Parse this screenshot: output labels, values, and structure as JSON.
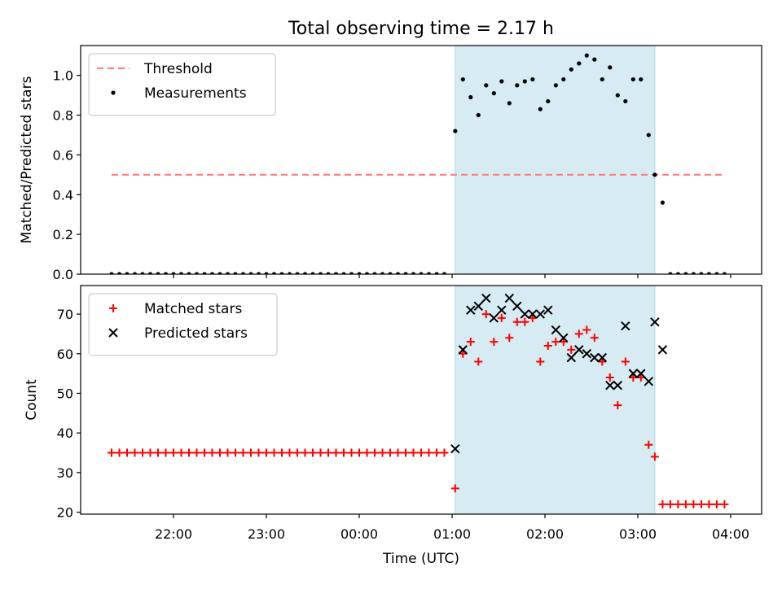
{
  "figure": {
    "title": "Total observing time = 2.17 h"
  },
  "chart_data": [
    {
      "type": "scatter",
      "panel": "top",
      "ylabel": "Matched/Predicted stars",
      "xlabel": "",
      "x_ticks": [
        "22:00",
        "23:00",
        "00:00",
        "01:00",
        "02:00",
        "03:00",
        "04:00"
      ],
      "y_ticks": [
        "0.0",
        "0.2",
        "0.4",
        "0.6",
        "0.8",
        "1.0"
      ],
      "ylim": [
        0,
        1.15
      ],
      "grid": false,
      "legend": {
        "placement": "upper left"
      },
      "shaded_interval": {
        "start": "01:02",
        "end": "03:11",
        "color": "#add8e6"
      },
      "threshold": {
        "name": "Threshold",
        "value": 0.5,
        "x_start": "21:20",
        "x_end": "03:56",
        "color": "#ff7f7f"
      },
      "series": [
        {
          "name": "Measurements",
          "color": "#000000",
          "x": [
            "21:20",
            "21:25",
            "21:30",
            "21:35",
            "21:40",
            "21:45",
            "21:50",
            "21:55",
            "22:00",
            "22:05",
            "22:10",
            "22:15",
            "22:20",
            "22:25",
            "22:30",
            "22:35",
            "22:40",
            "22:45",
            "22:50",
            "22:55",
            "23:00",
            "23:05",
            "23:10",
            "23:15",
            "23:20",
            "23:25",
            "23:30",
            "23:35",
            "23:40",
            "23:45",
            "23:50",
            "23:55",
            "00:00",
            "00:05",
            "00:10",
            "00:15",
            "00:20",
            "00:25",
            "00:30",
            "00:35",
            "00:40",
            "00:45",
            "00:50",
            "00:55",
            "01:02",
            "01:07",
            "01:12",
            "01:17",
            "01:22",
            "01:27",
            "01:32",
            "01:37",
            "01:42",
            "01:47",
            "01:52",
            "01:57",
            "02:02",
            "02:07",
            "02:12",
            "02:17",
            "02:22",
            "02:27",
            "02:32",
            "02:37",
            "02:42",
            "02:47",
            "02:52",
            "02:57",
            "03:02",
            "03:07",
            "03:11",
            "03:16",
            "03:21",
            "03:26",
            "03:31",
            "03:36",
            "03:41",
            "03:46",
            "03:51",
            "03:56"
          ],
          "y": [
            0,
            0,
            0,
            0,
            0,
            0,
            0,
            0,
            0,
            0,
            0,
            0,
            0,
            0,
            0,
            0,
            0,
            0,
            0,
            0,
            0,
            0,
            0,
            0,
            0,
            0,
            0,
            0,
            0,
            0,
            0,
            0,
            0,
            0,
            0,
            0,
            0,
            0,
            0,
            0,
            0,
            0,
            0,
            0,
            0.72,
            0.98,
            0.89,
            0.8,
            0.95,
            0.91,
            0.97,
            0.86,
            0.95,
            0.97,
            0.98,
            0.83,
            0.87,
            0.95,
            0.98,
            1.03,
            1.06,
            1.1,
            1.08,
            0.98,
            1.04,
            0.9,
            0.87,
            0.98,
            0.98,
            0.7,
            0.5,
            0.36,
            0,
            0,
            0,
            0,
            0,
            0,
            0,
            0
          ]
        }
      ]
    },
    {
      "type": "scatter",
      "panel": "bottom",
      "ylabel": "Count",
      "xlabel": "Time (UTC)",
      "x_ticks": [
        "22:00",
        "23:00",
        "00:00",
        "01:00",
        "02:00",
        "03:00",
        "04:00"
      ],
      "y_ticks": [
        "20",
        "30",
        "40",
        "50",
        "60",
        "70"
      ],
      "ylim": [
        19.5,
        77.2
      ],
      "grid": false,
      "legend": {
        "placement": "upper left"
      },
      "shaded_interval": {
        "start": "01:02",
        "end": "03:11",
        "color": "#add8e6"
      },
      "series": [
        {
          "name": "Matched stars",
          "marker": "+",
          "color": "#ff0000",
          "x": [
            "21:20",
            "21:25",
            "21:30",
            "21:35",
            "21:40",
            "21:45",
            "21:50",
            "21:55",
            "22:00",
            "22:05",
            "22:10",
            "22:15",
            "22:20",
            "22:25",
            "22:30",
            "22:35",
            "22:40",
            "22:45",
            "22:50",
            "22:55",
            "23:00",
            "23:05",
            "23:10",
            "23:15",
            "23:20",
            "23:25",
            "23:30",
            "23:35",
            "23:40",
            "23:45",
            "23:50",
            "23:55",
            "00:00",
            "00:05",
            "00:10",
            "00:15",
            "00:20",
            "00:25",
            "00:30",
            "00:35",
            "00:40",
            "00:45",
            "00:50",
            "00:55",
            "01:02",
            "01:07",
            "01:12",
            "01:17",
            "01:22",
            "01:27",
            "01:32",
            "01:37",
            "01:42",
            "01:47",
            "01:52",
            "01:57",
            "02:02",
            "02:07",
            "02:12",
            "02:17",
            "02:22",
            "02:27",
            "02:32",
            "02:37",
            "02:42",
            "02:47",
            "02:52",
            "02:57",
            "03:02",
            "03:07",
            "03:11",
            "03:16",
            "03:21",
            "03:26",
            "03:31",
            "03:36",
            "03:41",
            "03:46",
            "03:51",
            "03:56"
          ],
          "y": [
            35,
            35,
            35,
            35,
            35,
            35,
            35,
            35,
            35,
            35,
            35,
            35,
            35,
            35,
            35,
            35,
            35,
            35,
            35,
            35,
            35,
            35,
            35,
            35,
            35,
            35,
            35,
            35,
            35,
            35,
            35,
            35,
            35,
            35,
            35,
            35,
            35,
            35,
            35,
            35,
            35,
            35,
            35,
            35,
            26,
            60,
            63,
            58,
            70,
            63,
            69,
            64,
            68,
            68,
            69,
            58,
            62,
            63,
            63,
            61,
            65,
            66,
            64,
            58,
            54,
            47,
            58,
            54,
            54,
            37,
            34,
            22,
            22,
            22,
            22,
            22,
            22,
            22,
            22,
            22
          ]
        },
        {
          "name": "Predicted stars",
          "marker": "x",
          "color": "#000000",
          "x": [
            "01:02",
            "01:07",
            "01:12",
            "01:17",
            "01:22",
            "01:27",
            "01:32",
            "01:37",
            "01:42",
            "01:47",
            "01:52",
            "01:57",
            "02:02",
            "02:07",
            "02:12",
            "02:17",
            "02:22",
            "02:27",
            "02:32",
            "02:37",
            "02:42",
            "02:47",
            "02:52",
            "02:57",
            "03:02",
            "03:07",
            "03:11",
            "03:16"
          ],
          "y": [
            36,
            61,
            71,
            72,
            74,
            69,
            71,
            74,
            72,
            70,
            70,
            70,
            71,
            66,
            64,
            59,
            61,
            60,
            59,
            59,
            52,
            52,
            67,
            55,
            55,
            53,
            68,
            61
          ]
        }
      ]
    }
  ]
}
